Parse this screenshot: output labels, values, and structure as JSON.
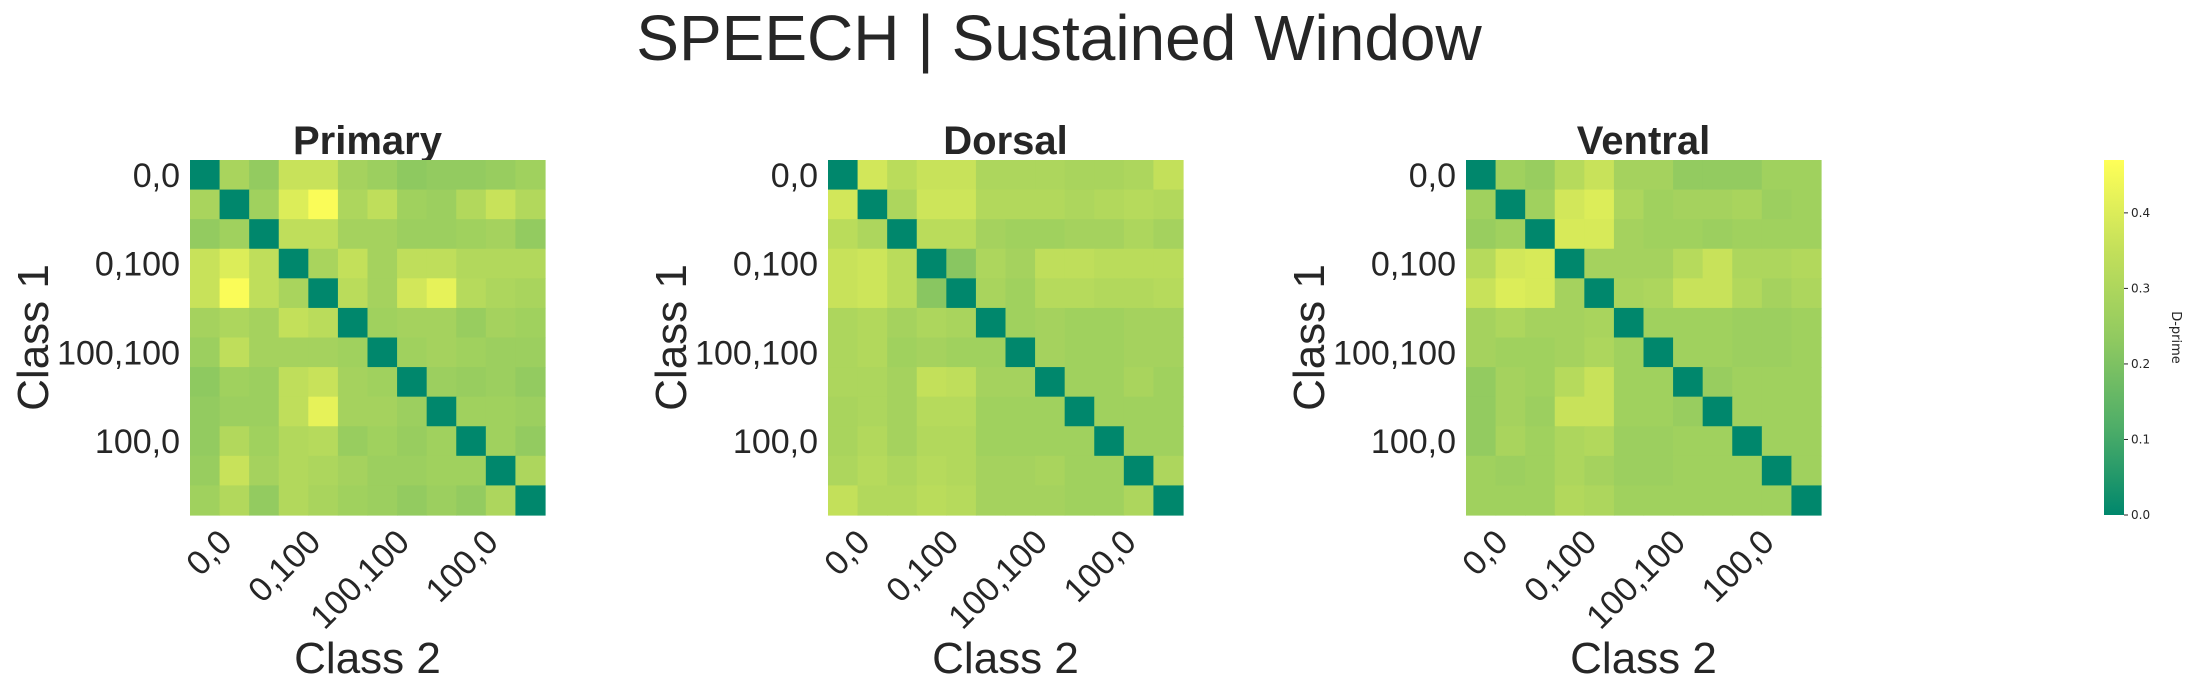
{
  "title": "SPEECH | Sustained Window",
  "colorbar": {
    "label": "D-prime",
    "vmin": 0.0,
    "vmax": 0.47,
    "ticks": [
      0.0,
      0.1,
      0.2,
      0.3,
      0.4
    ],
    "tick_labels": [
      "0.0",
      "0.1",
      "0.2",
      "0.3",
      "0.4"
    ],
    "colors": [
      "#00876c",
      "#4fae68",
      "#91ca60",
      "#c4e05a",
      "#ffff58"
    ]
  },
  "chart_data": [
    {
      "type": "heatmap",
      "title": "Primary",
      "xlabel": "Class 2",
      "ylabel": "Class 1",
      "tick_labels": [
        "0,0",
        "0,100",
        "100,100",
        "100,0"
      ],
      "tick_positions": [
        0,
        3,
        6,
        9
      ],
      "values": [
        [
          0.0,
          0.29,
          0.24,
          0.36,
          0.36,
          0.28,
          0.26,
          0.23,
          0.24,
          0.24,
          0.25,
          0.27
        ],
        [
          0.29,
          0.0,
          0.27,
          0.4,
          0.46,
          0.3,
          0.34,
          0.27,
          0.26,
          0.31,
          0.36,
          0.31
        ],
        [
          0.24,
          0.27,
          0.0,
          0.34,
          0.34,
          0.28,
          0.28,
          0.26,
          0.26,
          0.27,
          0.28,
          0.24
        ],
        [
          0.36,
          0.4,
          0.34,
          0.0,
          0.29,
          0.35,
          0.28,
          0.34,
          0.34,
          0.31,
          0.31,
          0.31
        ],
        [
          0.36,
          0.46,
          0.34,
          0.29,
          0.0,
          0.33,
          0.28,
          0.38,
          0.42,
          0.32,
          0.3,
          0.29
        ],
        [
          0.28,
          0.3,
          0.28,
          0.35,
          0.33,
          0.0,
          0.27,
          0.28,
          0.28,
          0.25,
          0.28,
          0.27
        ],
        [
          0.26,
          0.34,
          0.28,
          0.28,
          0.28,
          0.27,
          0.0,
          0.27,
          0.28,
          0.27,
          0.26,
          0.26
        ],
        [
          0.23,
          0.27,
          0.26,
          0.34,
          0.36,
          0.28,
          0.27,
          0.0,
          0.26,
          0.25,
          0.26,
          0.24
        ],
        [
          0.24,
          0.26,
          0.26,
          0.34,
          0.42,
          0.28,
          0.28,
          0.26,
          0.0,
          0.27,
          0.27,
          0.26
        ],
        [
          0.24,
          0.31,
          0.27,
          0.31,
          0.32,
          0.25,
          0.27,
          0.25,
          0.27,
          0.0,
          0.27,
          0.24
        ],
        [
          0.25,
          0.36,
          0.28,
          0.31,
          0.3,
          0.28,
          0.26,
          0.26,
          0.27,
          0.27,
          0.0,
          0.3
        ],
        [
          0.27,
          0.31,
          0.24,
          0.31,
          0.29,
          0.27,
          0.26,
          0.24,
          0.26,
          0.24,
          0.3,
          0.0
        ]
      ]
    },
    {
      "type": "heatmap",
      "title": "Dorsal",
      "xlabel": "Class 2",
      "ylabel": "Class 1",
      "tick_labels": [
        "0,0",
        "0,100",
        "100,100",
        "100,0"
      ],
      "tick_positions": [
        0,
        3,
        6,
        9
      ],
      "values": [
        [
          0.0,
          0.38,
          0.33,
          0.36,
          0.36,
          0.3,
          0.3,
          0.3,
          0.29,
          0.29,
          0.3,
          0.35
        ],
        [
          0.38,
          0.0,
          0.3,
          0.37,
          0.37,
          0.31,
          0.31,
          0.31,
          0.3,
          0.31,
          0.32,
          0.31
        ],
        [
          0.33,
          0.3,
          0.0,
          0.33,
          0.33,
          0.28,
          0.27,
          0.27,
          0.28,
          0.28,
          0.3,
          0.28
        ],
        [
          0.36,
          0.37,
          0.33,
          0.0,
          0.22,
          0.3,
          0.28,
          0.34,
          0.34,
          0.33,
          0.33,
          0.33
        ],
        [
          0.36,
          0.37,
          0.33,
          0.22,
          0.0,
          0.29,
          0.27,
          0.32,
          0.32,
          0.31,
          0.31,
          0.32
        ],
        [
          0.3,
          0.31,
          0.28,
          0.3,
          0.29,
          0.0,
          0.27,
          0.28,
          0.27,
          0.27,
          0.28,
          0.28
        ],
        [
          0.3,
          0.31,
          0.27,
          0.28,
          0.27,
          0.27,
          0.0,
          0.28,
          0.27,
          0.27,
          0.28,
          0.28
        ],
        [
          0.3,
          0.3,
          0.28,
          0.35,
          0.34,
          0.28,
          0.28,
          0.0,
          0.27,
          0.27,
          0.29,
          0.27
        ],
        [
          0.29,
          0.3,
          0.28,
          0.32,
          0.32,
          0.27,
          0.27,
          0.27,
          0.0,
          0.27,
          0.27,
          0.27
        ],
        [
          0.29,
          0.31,
          0.28,
          0.31,
          0.31,
          0.27,
          0.27,
          0.27,
          0.27,
          0.0,
          0.27,
          0.27
        ],
        [
          0.3,
          0.32,
          0.3,
          0.32,
          0.31,
          0.28,
          0.28,
          0.29,
          0.27,
          0.27,
          0.0,
          0.3
        ],
        [
          0.35,
          0.31,
          0.31,
          0.33,
          0.32,
          0.28,
          0.28,
          0.28,
          0.27,
          0.27,
          0.3,
          0.0
        ]
      ]
    },
    {
      "type": "heatmap",
      "title": "Ventral",
      "xlabel": "Class 2",
      "ylabel": "Class 1",
      "tick_labels": [
        "0,0",
        "0,100",
        "100,100",
        "100,0"
      ],
      "tick_positions": [
        0,
        3,
        6,
        9
      ],
      "values": [
        [
          0.0,
          0.27,
          0.25,
          0.32,
          0.36,
          0.28,
          0.28,
          0.24,
          0.24,
          0.24,
          0.27,
          0.27
        ],
        [
          0.27,
          0.0,
          0.27,
          0.38,
          0.4,
          0.3,
          0.27,
          0.28,
          0.28,
          0.29,
          0.26,
          0.27
        ],
        [
          0.25,
          0.27,
          0.0,
          0.39,
          0.39,
          0.28,
          0.27,
          0.27,
          0.26,
          0.27,
          0.27,
          0.27
        ],
        [
          0.32,
          0.38,
          0.39,
          0.0,
          0.28,
          0.28,
          0.28,
          0.32,
          0.36,
          0.3,
          0.3,
          0.31
        ],
        [
          0.36,
          0.4,
          0.39,
          0.28,
          0.0,
          0.29,
          0.3,
          0.36,
          0.36,
          0.31,
          0.28,
          0.3
        ],
        [
          0.28,
          0.3,
          0.28,
          0.28,
          0.29,
          0.0,
          0.27,
          0.27,
          0.27,
          0.26,
          0.26,
          0.27
        ],
        [
          0.28,
          0.27,
          0.27,
          0.28,
          0.3,
          0.27,
          0.0,
          0.27,
          0.27,
          0.26,
          0.26,
          0.27
        ],
        [
          0.24,
          0.28,
          0.27,
          0.32,
          0.36,
          0.27,
          0.27,
          0.0,
          0.25,
          0.27,
          0.27,
          0.27
        ],
        [
          0.24,
          0.28,
          0.26,
          0.36,
          0.36,
          0.27,
          0.27,
          0.25,
          0.0,
          0.27,
          0.27,
          0.27
        ],
        [
          0.24,
          0.29,
          0.27,
          0.3,
          0.31,
          0.26,
          0.26,
          0.27,
          0.27,
          0.0,
          0.27,
          0.27
        ],
        [
          0.27,
          0.26,
          0.27,
          0.3,
          0.28,
          0.26,
          0.26,
          0.27,
          0.27,
          0.27,
          0.0,
          0.27
        ],
        [
          0.27,
          0.27,
          0.27,
          0.31,
          0.3,
          0.27,
          0.27,
          0.27,
          0.27,
          0.27,
          0.27,
          0.0
        ]
      ]
    }
  ]
}
